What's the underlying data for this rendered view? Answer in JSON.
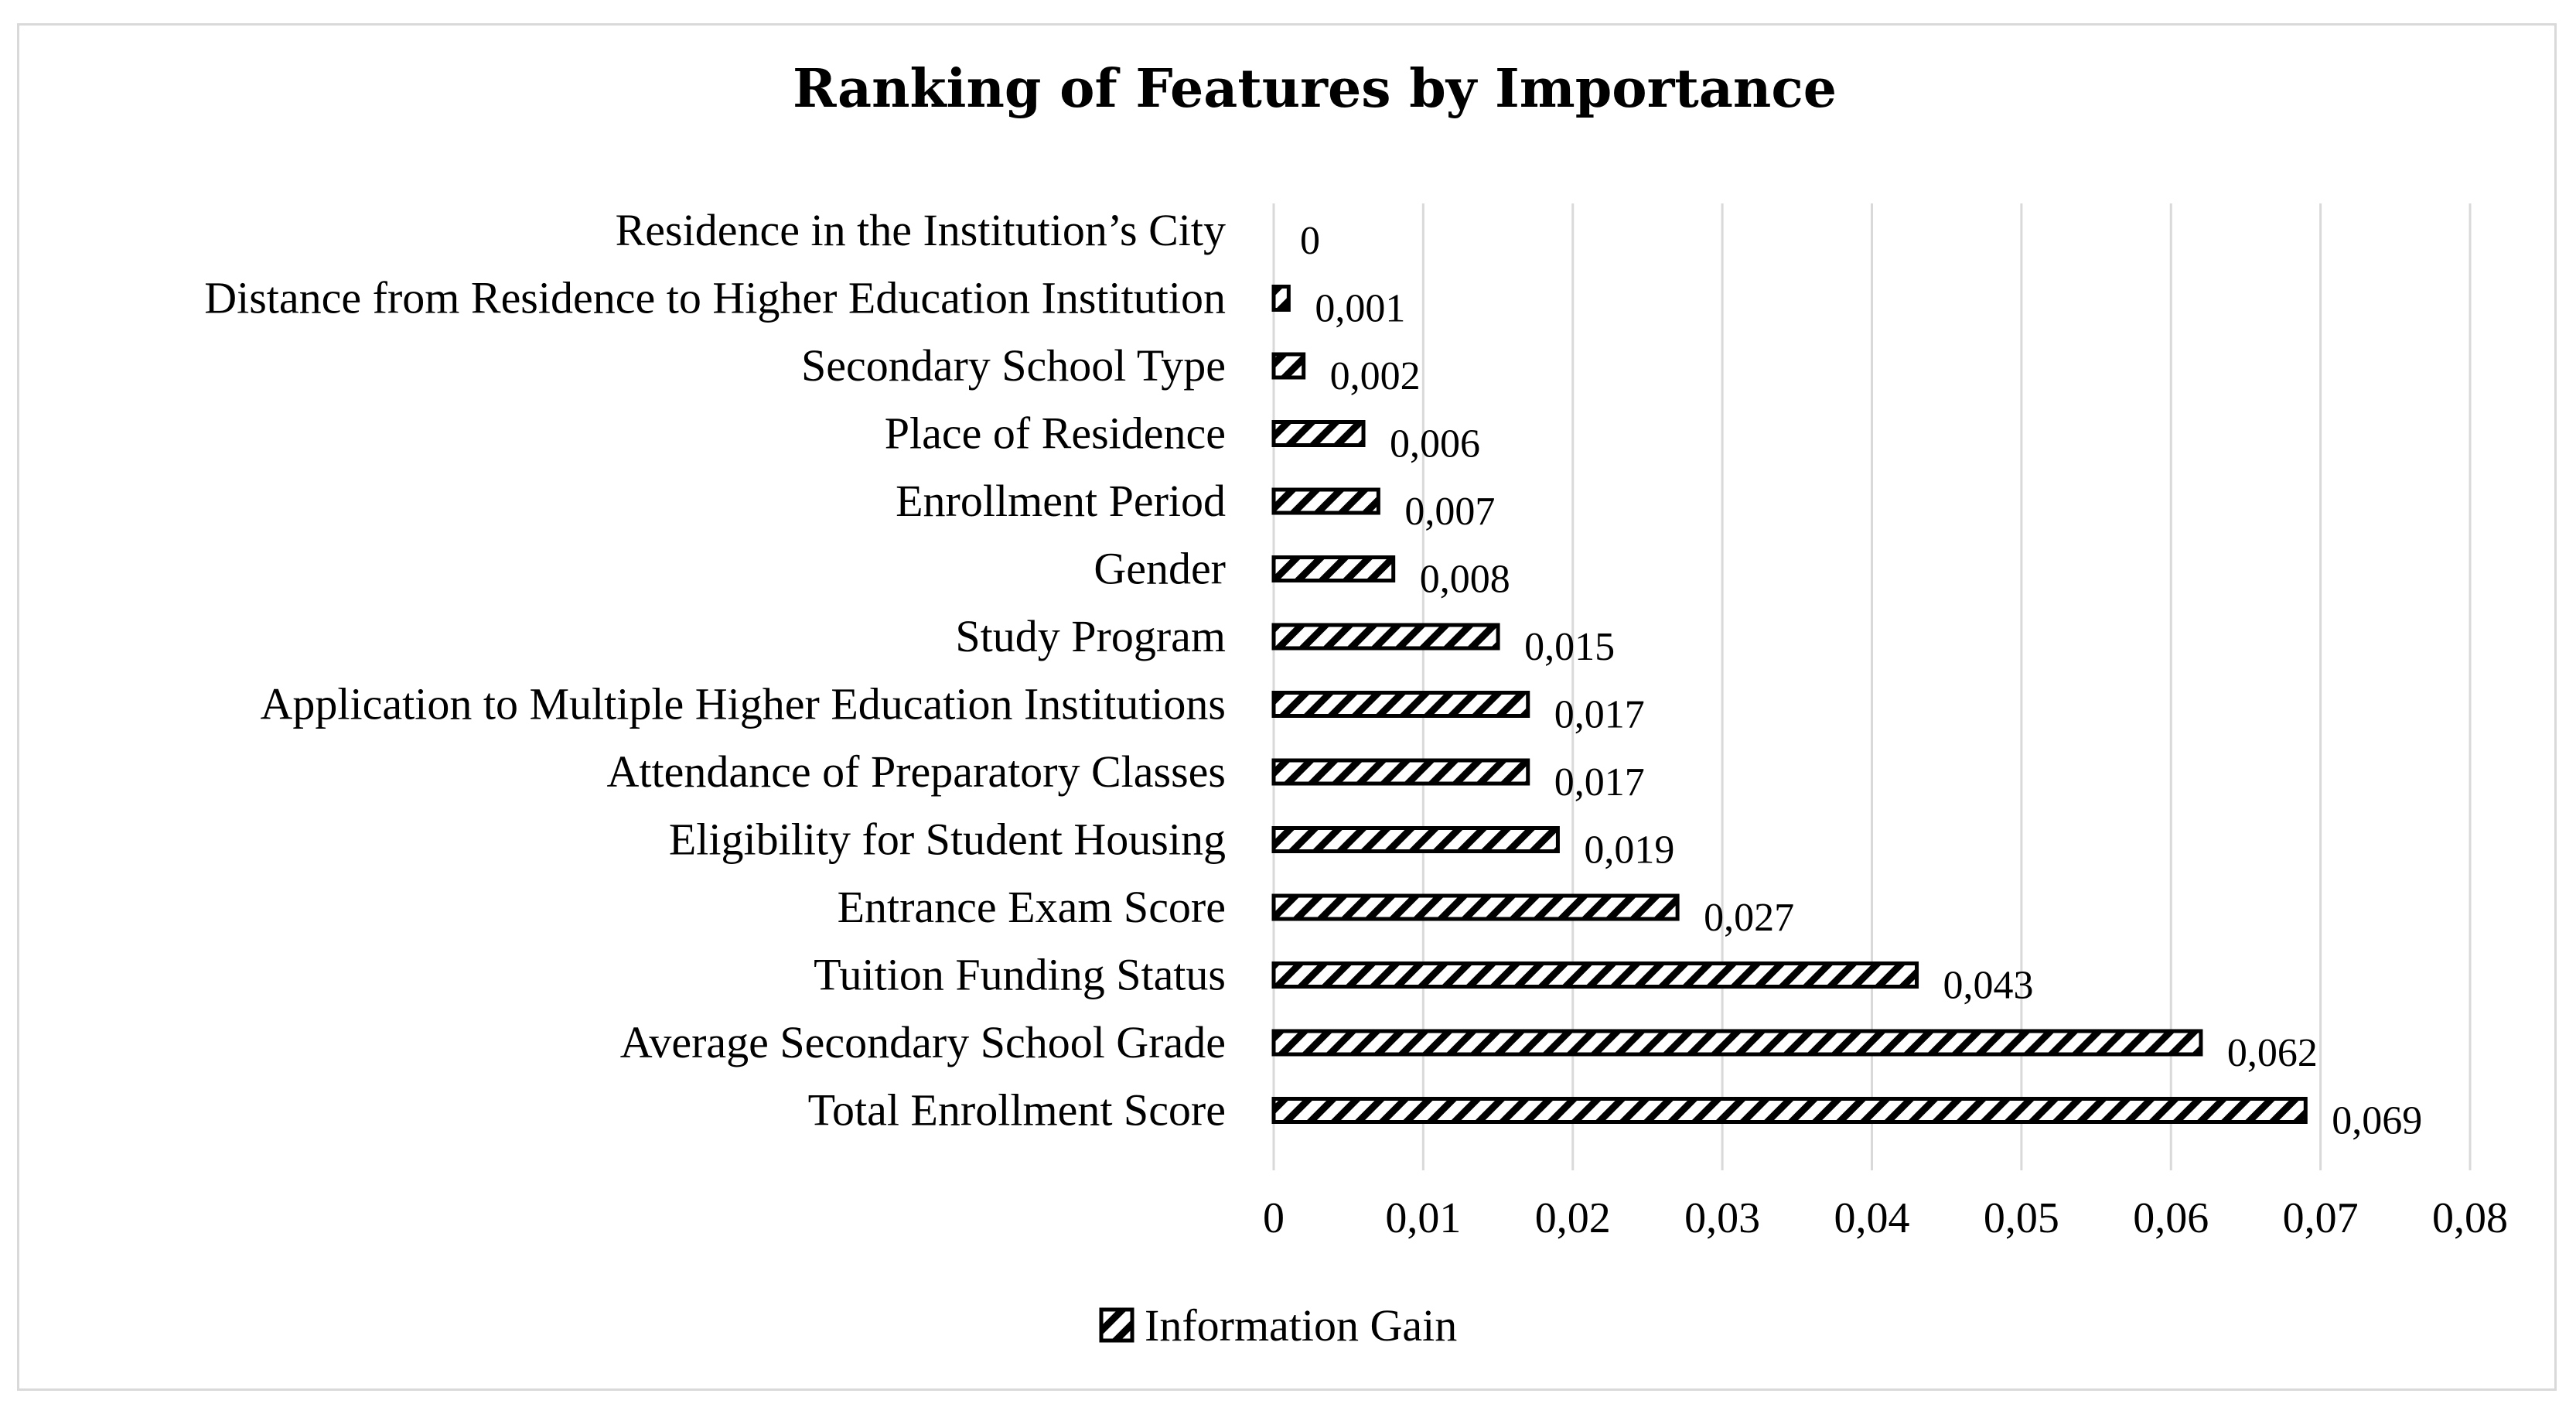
{
  "chart_data": {
    "type": "bar",
    "orientation": "horizontal",
    "title": "Ranking of Features by Importance",
    "categories": [
      "Residence in the Institution’s City",
      "Distance from Residence to Higher Education Institution",
      "Secondary School Type",
      "Place of Residence",
      "Enrollment Period",
      "Gender",
      "Study Program",
      "Application to Multiple Higher Education Institutions",
      "Attendance of Preparatory Classes",
      "Eligibility for Student Housing",
      "Entrance Exam Score",
      "Tuition Funding Status",
      "Average Secondary School Grade",
      "Total Enrollment Score"
    ],
    "series": [
      {
        "name": "Information Gain",
        "values": [
          0,
          0.001,
          0.002,
          0.006,
          0.007,
          0.008,
          0.015,
          0.017,
          0.017,
          0.019,
          0.027,
          0.043,
          0.062,
          0.069
        ],
        "labels": [
          "0",
          "0,001",
          "0,002",
          "0,006",
          "0,007",
          "0,008",
          "0,015",
          "0,017",
          "0,017",
          "0,019",
          "0,027",
          "0,043",
          "0,062",
          "0,069"
        ]
      }
    ],
    "xlim": [
      0,
      0.08
    ],
    "ticks": [
      "0",
      "0,01",
      "0,02",
      "0,03",
      "0,04",
      "0,05",
      "0,06",
      "0,07",
      "0,08"
    ],
    "grid": true,
    "legend": "bottom",
    "bar_pattern": "diagonal-hatch",
    "colors": {
      "bar_stroke": "#000000",
      "bar_hatch": "#000000",
      "grid": "#d9d9d9",
      "frame": "#d9d9d9"
    }
  }
}
